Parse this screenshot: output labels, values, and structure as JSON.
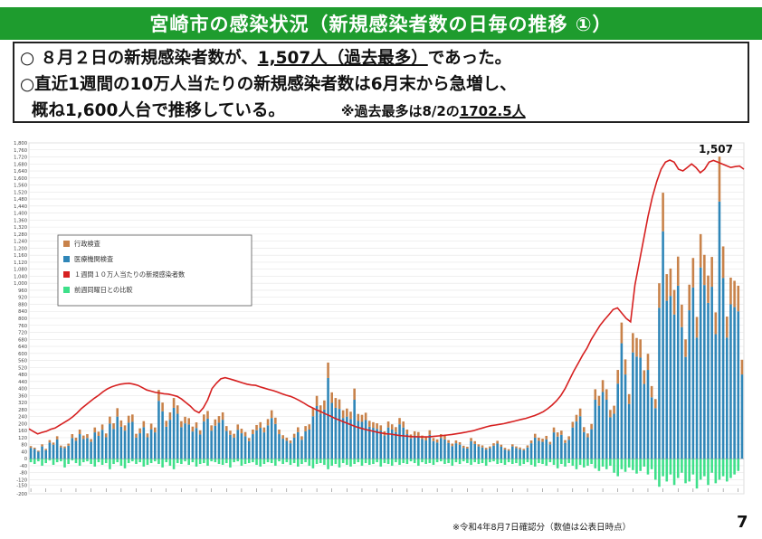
{
  "header": {
    "title": "宮崎市の感染状況（新規感染者数の日毎の推移 ①）"
  },
  "summary": {
    "line1_prefix": "○ ８月２日の新規感染者数が、",
    "line1_value": "1,507人（過去最多）",
    "line1_suffix": "であった。",
    "line2": "○直近1週間の10万人当たりの新規感染者数は6月末から急増し、",
    "line3": "概ね1,600人台で推移している。",
    "note_prefix": "※過去最多は8/2の",
    "note_value": "1702.5人"
  },
  "footer": {
    "footnote": "※令和4年8月7日確認分（数値は公表日時点）",
    "page_number": "7"
  },
  "colors": {
    "title_bg": "#1e9c2e",
    "gyosei": "#c8824a",
    "iryo": "#2f86b8",
    "rate_line": "#d62020",
    "week_compare": "#3ee08a"
  },
  "chart_data": {
    "type": "bar",
    "title": "",
    "xlabel": "",
    "ylabel": "",
    "ylim": [
      -200,
      1800
    ],
    "y_ticks": [
      "-200",
      "-150",
      "-120",
      "-80",
      "-40",
      "0",
      "40",
      "80",
      "120",
      "160",
      "200",
      "240",
      "280",
      "320",
      "360",
      "400",
      "440",
      "480",
      "520",
      "560",
      "600",
      "640",
      "680",
      "720",
      "760",
      "800",
      "840",
      "880",
      "920",
      "960",
      "1,000",
      "1,040",
      "1,080",
      "1,120",
      "1,160",
      "1,200",
      "1,240",
      "1,280",
      "1,320",
      "1,360",
      "1,400",
      "1,440",
      "1,480",
      "1,520",
      "1,560",
      "1,600",
      "1,640",
      "1,680",
      "1,720",
      "1,760",
      "1,800"
    ],
    "grid": true,
    "legend": {
      "position": "left",
      "entries": [
        "行政検査",
        "医療機関検査",
        "１週間１０万人当たりの新規感染者数",
        "前週同曜日との比較"
      ]
    },
    "annotations": [
      {
        "label": "1,507"
      }
    ],
    "series": [
      {
        "name": "医療機関検査",
        "values": [
          62,
          55,
          40,
          70,
          48,
          92,
          80,
          110,
          65,
          60,
          74,
          118,
          102,
          140,
          112,
          118,
          96,
          150,
          130,
          165,
          122,
          200,
          170,
          240,
          182,
          160,
          205,
          210,
          120,
          145,
          180,
          122,
          168,
          150,
          330,
          270,
          182,
          222,
          290,
          256,
          180,
          201,
          195,
          155,
          175,
          138,
          212,
          228,
          160,
          188,
          205,
          222,
          158,
          136,
          120,
          165,
          145,
          128,
          100,
          140,
          162,
          176,
          150,
          190,
          232,
          198,
          140,
          114,
          102,
          88,
          120,
          151,
          108,
          156,
          166,
          242,
          300,
          256,
          280,
          460,
          318,
          290,
          284,
          232,
          240,
          226,
          336,
          215,
          210,
          220,
          182,
          176,
          170,
          160,
          132,
          178,
          166,
          152,
          196,
          178,
          140,
          116,
          132,
          128,
          112,
          104,
          136,
          100,
          92,
          118,
          110,
          90,
          72,
          88,
          80,
          62,
          58,
          100,
          84,
          70,
          64,
          52,
          60,
          74,
          86,
          68,
          52,
          46,
          70,
          60,
          54,
          48,
          64,
          88,
          120,
          102,
          96,
          110,
          82,
          150,
          126,
          136,
          90,
          108,
          178,
          212,
          242,
          152,
          122,
          168,
          336,
          302,
          380,
          336,
          236,
          256,
          428,
          658,
          480,
          312,
          606,
          582,
          576,
          426,
          506,
          350,
          288,
          860,
          1296,
          900,
          928,
          822,
          986,
          750,
          580,
          846,
          976,
          690,
          1090,
          990,
          888,
          980,
          710,
          1466,
          1030,
          690,
          880,
          864,
          840,
          480
        ],
        "color": "#2f86b8"
      },
      {
        "name": "行政検査",
        "values": [
          10,
          8,
          6,
          12,
          8,
          14,
          12,
          18,
          10,
          10,
          12,
          22,
          18,
          26,
          20,
          22,
          16,
          28,
          24,
          30,
          22,
          40,
          32,
          48,
          36,
          30,
          40,
          42,
          22,
          28,
          34,
          22,
          32,
          28,
          62,
          50,
          34,
          42,
          56,
          48,
          34,
          38,
          36,
          28,
          32,
          24,
          40,
          44,
          30,
          36,
          38,
          42,
          28,
          24,
          22,
          30,
          26,
          24,
          18,
          26,
          30,
          32,
          28,
          36,
          44,
          36,
          26,
          20,
          18,
          16,
          22,
          28,
          20,
          30,
          30,
          46,
          58,
          48,
          52,
          88,
          60,
          56,
          54,
          44,
          46,
          42,
          64,
          40,
          40,
          42,
          34,
          32,
          32,
          30,
          24,
          34,
          30,
          28,
          36,
          34,
          26,
          22,
          24,
          24,
          20,
          20,
          26,
          18,
          18,
          22,
          20,
          16,
          14,
          16,
          14,
          12,
          10,
          18,
          16,
          12,
          12,
          10,
          10,
          14,
          16,
          12,
          10,
          8,
          12,
          10,
          10,
          8,
          12,
          16,
          22,
          18,
          18,
          20,
          14,
          28,
          24,
          24,
          16,
          20,
          32,
          38,
          44,
          28,
          22,
          30,
          60,
          56,
          68,
          60,
          42,
          46,
          78,
          118,
          86,
          56,
          110,
          106,
          104,
          78,
          92,
          64,
          52,
          140,
          220,
          152,
          156,
          140,
          166,
          128,
          100,
          146,
          168,
          118,
          190,
          172,
          156,
          170,
          124,
          256,
          180,
          120,
          152,
          150,
          146,
          84
        ],
        "color": "#c8824a"
      },
      {
        "name": "前週同曜日との比較",
        "values": [
          -20,
          -30,
          -15,
          -40,
          -25,
          -10,
          -35,
          -20,
          -15,
          -50,
          -30,
          -10,
          -25,
          -40,
          -20,
          -15,
          -30,
          -45,
          -20,
          -35,
          -25,
          -60,
          -30,
          -20,
          -40,
          -55,
          -25,
          -15,
          -30,
          -20,
          -45,
          -35,
          -25,
          -15,
          -30,
          -50,
          -20,
          -40,
          -60,
          -25,
          -30,
          -15,
          -35,
          -20,
          -45,
          -30,
          -25,
          -40,
          -15,
          -20,
          -30,
          -35,
          -25,
          -50,
          -20,
          -15,
          -40,
          -30,
          -25,
          -20,
          -35,
          -45,
          -30,
          -20,
          -25,
          -40,
          -15,
          -30,
          -20,
          -35,
          -25,
          -45,
          -30,
          -20,
          -40,
          -55,
          -30,
          -25,
          -35,
          -60,
          -40,
          -30,
          -50,
          -25,
          -35,
          -45,
          -30,
          -20,
          -40,
          -25,
          -35,
          -30,
          -20,
          -45,
          -25,
          -30,
          -40,
          -20,
          -35,
          -25,
          -30,
          -15,
          -25,
          -40,
          -20,
          -30,
          -25,
          -35,
          -20,
          -15,
          -30,
          -25,
          -40,
          -20,
          -30,
          -15,
          -25,
          -35,
          -20,
          -30,
          -25,
          -40,
          -20,
          -15,
          -30,
          -25,
          -35,
          -20,
          -30,
          -25,
          -40,
          -30,
          -20,
          -35,
          -45,
          -25,
          -30,
          -40,
          -20,
          -35,
          -55,
          -30,
          -45,
          -25,
          -40,
          -60,
          -35,
          -50,
          -40,
          -30,
          -55,
          -70,
          -45,
          -60,
          -40,
          -80,
          -100,
          -60,
          -75,
          -50,
          -65,
          -85,
          -70,
          -45,
          -90,
          -60,
          -120,
          -160,
          -100,
          -130,
          -90,
          -150,
          -110,
          -80,
          -140,
          -130,
          -90,
          -170,
          -120,
          -100,
          -150,
          -80,
          -140,
          -120,
          -100,
          -130,
          -110,
          -90,
          -70
        ],
        "color": "#3ee08a"
      },
      {
        "name": "１週間１０万人当たりの新規感染者数",
        "values": [
          170,
          155,
          142,
          150,
          156,
          168,
          175,
          190,
          205,
          220,
          238,
          260,
          285,
          305,
          325,
          345,
          362,
          382,
          398,
          410,
          418,
          425,
          428,
          430,
          425,
          418,
          405,
          392,
          385,
          378,
          374,
          370,
          368,
          362,
          355,
          340,
          320,
          300,
          275,
          262,
          290,
          335,
          400,
          430,
          455,
          462,
          455,
          448,
          440,
          432,
          425,
          420,
          418,
          410,
          402,
          395,
          388,
          380,
          370,
          362,
          355,
          345,
          332,
          318,
          302,
          290,
          278,
          268,
          255,
          245,
          232,
          222,
          212,
          202,
          192,
          182,
          175,
          168,
          162,
          156,
          150,
          146,
          142,
          140,
          136,
          132,
          130,
          128,
          126,
          125,
          124,
          124,
          125,
          128,
          130,
          132,
          135,
          138,
          142,
          146,
          150,
          155,
          160,
          168,
          175,
          182,
          188,
          192,
          196,
          200,
          206,
          212,
          218,
          224,
          230,
          238,
          246,
          256,
          268,
          285,
          305,
          330,
          360,
          400,
          450,
          500,
          545,
          590,
          630,
          680,
          720,
          760,
          792,
          820,
          850,
          860,
          830,
          800,
          780,
          990,
          1120,
          1250,
          1380,
          1490,
          1580,
          1650,
          1690,
          1702,
          1690,
          1650,
          1640,
          1660,
          1680,
          1660,
          1630,
          1650,
          1690,
          1700,
          1690,
          1680,
          1670,
          1660,
          1665,
          1668,
          1650
        ],
        "color": "#d62020"
      }
    ]
  }
}
